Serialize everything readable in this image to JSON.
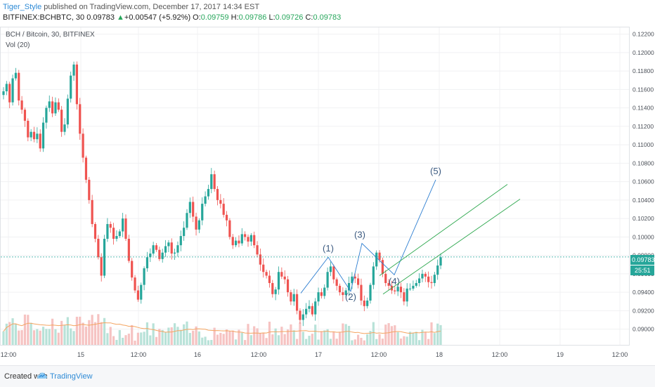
{
  "header": {
    "author": "Tiger_Style",
    "published": "published on TradingView.com, December 17, 2017 14:34 EST",
    "symbol": "BITFINEX:BCHBTC, 30",
    "last": "0.09783",
    "change_arrow": "▲",
    "change": "+0.00547 (+5.92%)",
    "o_label": "O:",
    "o": "0.09759",
    "h_label": "H:",
    "h": "0.09786",
    "l_label": "L:",
    "l": "0.09726",
    "c_label": "C:",
    "c": "0.09783"
  },
  "legend": {
    "title": "BCH / Bitcoin, 30, BITFINEX",
    "indicator": "Vol (20)"
  },
  "price_tag": {
    "value": "0.09783",
    "countdown": "25:51"
  },
  "footer": {
    "created_with": "Created with",
    "brand": "TradingView"
  },
  "colors": {
    "up": "#26a69a",
    "down": "#ef5350",
    "line_blue": "#2f7fd1",
    "channel_green": "#2ea84f",
    "price_line": "#26a69a",
    "ma_line": "#f4a460"
  },
  "chart_data": {
    "type": "candlestick",
    "y_axis_ticks": [
      "0.12200",
      "0.12000",
      "0.11800",
      "0.11600",
      "0.11400",
      "0.11200",
      "0.11000",
      "0.10800",
      "0.10600",
      "0.10400",
      "0.10200",
      "0.10000",
      "0.09800",
      "0.09600",
      "0.09400",
      "0.09200",
      "0.09000"
    ],
    "ylim": [
      0.0886,
      0.1225
    ],
    "x_axis_ticks": [
      "12:00",
      "15",
      "12:00",
      "16",
      "12:00",
      "17",
      "12:00",
      "18",
      "12:00",
      "19",
      "12:00"
    ],
    "x_axis_note": "Dec 15 – Dec 19, 2017, 30-minute bars",
    "close_series": [
      0.1158,
      0.1166,
      0.1146,
      0.1172,
      0.1178,
      0.1148,
      0.1138,
      0.1126,
      0.1108,
      0.1114,
      0.1106,
      0.1112,
      0.1096,
      0.1124,
      0.114,
      0.1147,
      0.1134,
      0.1146,
      0.1138,
      0.1114,
      0.1122,
      0.115,
      0.1175,
      0.1187,
      0.1144,
      0.1112,
      0.1086,
      0.1062,
      0.104,
      0.1014,
      0.0998,
      0.0978,
      0.0958,
      0.0998,
      0.1014,
      0.101,
      0.0998,
      0.1001,
      0.1006,
      0.102,
      0.0998,
      0.0974,
      0.0956,
      0.0942,
      0.0932,
      0.0948,
      0.0966,
      0.0978,
      0.0982,
      0.0991,
      0.0986,
      0.0976,
      0.0983,
      0.099,
      0.0994,
      0.0982,
      0.0983,
      0.0991,
      0.1001,
      0.101,
      0.1026,
      0.1038,
      0.1022,
      0.1008,
      0.1018,
      0.1036,
      0.1044,
      0.1052,
      0.1068,
      0.1052,
      0.104,
      0.1036,
      0.1024,
      0.1018,
      0.1,
      0.0991,
      0.0996,
      0.0993,
      0.1003,
      0.1,
      0.0995,
      0.1002,
      0.0991,
      0.0981,
      0.097,
      0.0962,
      0.0958,
      0.095,
      0.0938,
      0.0943,
      0.0962,
      0.0957,
      0.0954,
      0.094,
      0.093,
      0.0938,
      0.092,
      0.091,
      0.0916,
      0.0922,
      0.0925,
      0.0916,
      0.093,
      0.094,
      0.0936,
      0.0945,
      0.0962,
      0.0968,
      0.0954,
      0.0947,
      0.094,
      0.0937,
      0.0942,
      0.095,
      0.0957,
      0.0955,
      0.0948,
      0.0931,
      0.0925,
      0.0931,
      0.0948,
      0.0968,
      0.0983,
      0.0975,
      0.096,
      0.095,
      0.0947,
      0.0942,
      0.0941,
      0.0946,
      0.094,
      0.093,
      0.0944,
      0.0944,
      0.0947,
      0.095,
      0.0955,
      0.096,
      0.0957,
      0.0951,
      0.095,
      0.0959,
      0.0969,
      0.0978
    ],
    "volume_ma_note": "Vol (20) moving average line",
    "annotations": {
      "wave_labels": [
        "(1)",
        "(2)",
        "(3)",
        "(4)",
        "(5)"
      ],
      "wave_points": [
        [
          0.0939,
          0.0978,
          0.0942,
          0.0992,
          0.094,
          0.0959,
          0.1061
        ]
      ],
      "channel": "two parallel ascending trendlines from Dec 17 toward Dec 18 12:00",
      "last_price_line": 0.09783
    }
  }
}
